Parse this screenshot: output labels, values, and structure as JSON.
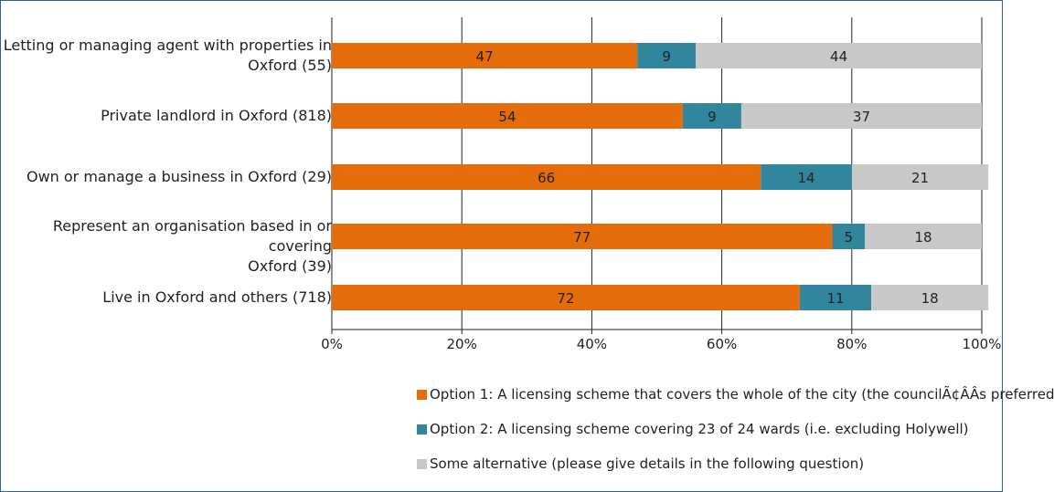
{
  "chart_data": {
    "type": "bar",
    "orientation": "horizontal",
    "stacked": true,
    "categories": [
      "Letting or managing agent with properties in Oxford (55)",
      "Private landlord in Oxford (818)",
      "Own or manage a business in Oxford (29)",
      "Represent an organisation based in or covering Oxford (39)",
      "Live in Oxford and others (718)"
    ],
    "category_lines": [
      [
        "Letting or managing agent with properties in",
        "Oxford (55)"
      ],
      [
        "Private landlord in Oxford (818)"
      ],
      [
        "Own or manage a business in Oxford (29)"
      ],
      [
        "Represent an organisation based in or covering",
        "Oxford (39)"
      ],
      [
        "Live in Oxford and others (718)"
      ]
    ],
    "series": [
      {
        "name": "Option 1: A licensing scheme that covers the whole of the city (the councilÃ¢ÂÂs preferred",
        "color": "#e46c0a",
        "values": [
          47,
          54,
          66,
          77,
          72
        ]
      },
      {
        "name": "Option 2: A licensing scheme covering 23 of 24 wards (i.e. excluding Holywell)",
        "color": "#31859c",
        "values": [
          9,
          9,
          14,
          5,
          11
        ]
      },
      {
        "name": "Some alternative (please give details in the following question)",
        "color": "#c8c8c8",
        "values": [
          44,
          37,
          21,
          18,
          18
        ]
      }
    ],
    "xlim": [
      0,
      100
    ],
    "xticks": [
      "0%",
      "20%",
      "40%",
      "60%",
      "80%",
      "100%"
    ],
    "grid": "vertical",
    "legend_position": "bottom"
  }
}
